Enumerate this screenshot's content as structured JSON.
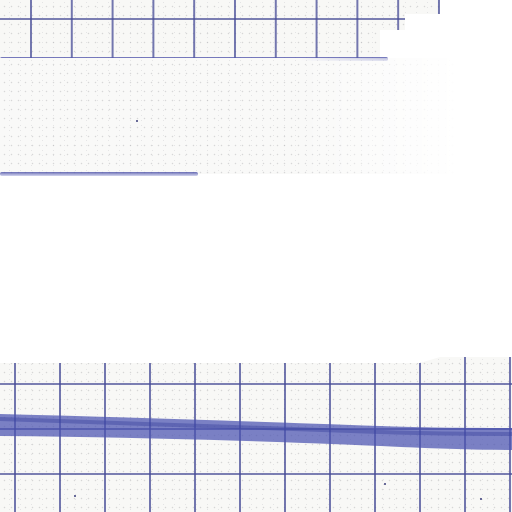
{
  "scene": {
    "background_color": "#ffffff",
    "paper_color": "#f8f8f6",
    "grid_line_color": "#464b96",
    "ink_stroke_color": "#4a52b0"
  }
}
